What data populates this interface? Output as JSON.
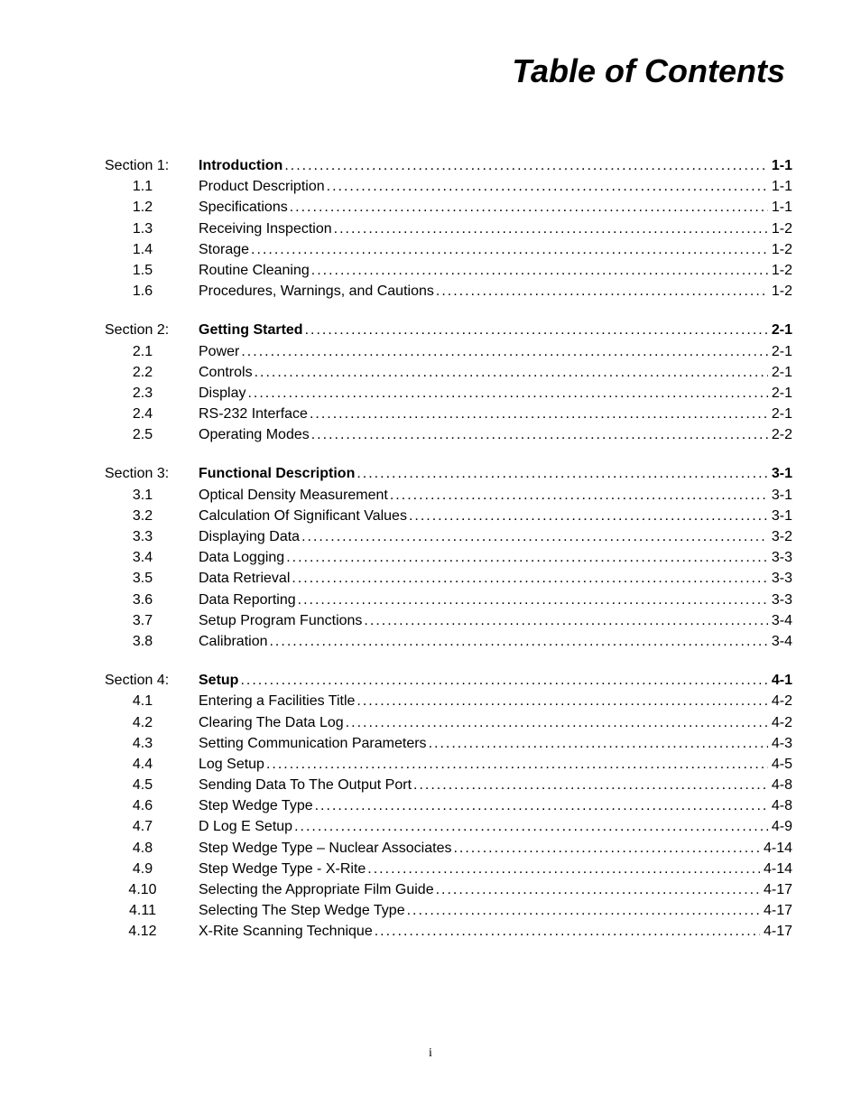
{
  "title": "Table of Contents",
  "page_number": "i",
  "colors": {
    "background": "#ffffff",
    "text": "#000000"
  },
  "typography": {
    "title_fontsize": 36,
    "body_fontsize": 16,
    "page_number_fontsize": 14
  },
  "sections": [
    {
      "label": "Section 1:",
      "title": "Introduction",
      "page": "1-1",
      "items": [
        {
          "number": "1.1",
          "label": "Product Description",
          "page": "1-1"
        },
        {
          "number": "1.2",
          "label": "Specifications",
          "page": "1-1"
        },
        {
          "number": "1.3",
          "label": "Receiving Inspection",
          "page": "1-2"
        },
        {
          "number": "1.4",
          "label": "Storage",
          "page": "1-2"
        },
        {
          "number": "1.5",
          "label": "Routine Cleaning",
          "page": "1-2"
        },
        {
          "number": "1.6",
          "label": "Procedures, Warnings, and Cautions",
          "page": "1-2"
        }
      ]
    },
    {
      "label": "Section 2:",
      "title": "Getting Started",
      "page": "2-1",
      "items": [
        {
          "number": "2.1",
          "label": "Power",
          "page": "2-1"
        },
        {
          "number": "2.2",
          "label": "Controls",
          "page": "2-1"
        },
        {
          "number": "2.3",
          "label": "Display",
          "page": "2-1"
        },
        {
          "number": "2.4",
          "label": "RS-232 Interface",
          "page": "2-1"
        },
        {
          "number": "2.5",
          "label": "Operating Modes",
          "page": "2-2"
        }
      ]
    },
    {
      "label": "Section 3:",
      "title": "Functional Description",
      "page": "3-1",
      "items": [
        {
          "number": "3.1",
          "label": "Optical Density Measurement",
          "page": "3-1"
        },
        {
          "number": "3.2",
          "label": "Calculation Of Significant Values",
          "page": "3-1"
        },
        {
          "number": "3.3",
          "label": "Displaying Data",
          "page": "3-2"
        },
        {
          "number": "3.4",
          "label": "Data Logging",
          "page": "3-3"
        },
        {
          "number": "3.5",
          "label": "Data Retrieval",
          "page": "3-3"
        },
        {
          "number": "3.6",
          "label": "Data Reporting",
          "page": "3-3"
        },
        {
          "number": "3.7",
          "label": "Setup Program Functions",
          "page": "3-4"
        },
        {
          "number": "3.8",
          "label": "Calibration",
          "page": "3-4"
        }
      ]
    },
    {
      "label": "Section 4:",
      "title": "Setup",
      "page": "4-1",
      "items": [
        {
          "number": "4.1",
          "label": "Entering a Facilities Title",
          "page": "4-2"
        },
        {
          "number": "4.2",
          "label": "Clearing The Data Log",
          "page": "4-2"
        },
        {
          "number": "4.3",
          "label": "Setting Communication Parameters",
          "page": "4-3"
        },
        {
          "number": "4.4",
          "label": "Log Setup",
          "page": "4-5"
        },
        {
          "number": "4.5",
          "label": "Sending Data To The Output Port",
          "page": "4-8"
        },
        {
          "number": "4.6",
          "label": "Step Wedge Type",
          "page": "4-8"
        },
        {
          "number": "4.7",
          "label": "D Log E Setup",
          "page": "4-9"
        },
        {
          "number": "4.8",
          "label": "Step Wedge Type – Nuclear Associates",
          "page": "4-14"
        },
        {
          "number": "4.9",
          "label": "Step Wedge Type - X-Rite",
          "page": "4-14"
        },
        {
          "number": "4.10",
          "label": "Selecting the Appropriate Film Guide",
          "page": "4-17"
        },
        {
          "number": "4.11",
          "label": "Selecting The Step Wedge Type",
          "page": "4-17"
        },
        {
          "number": "4.12",
          "label": "X-Rite Scanning Technique",
          "page": "4-17"
        }
      ]
    }
  ]
}
